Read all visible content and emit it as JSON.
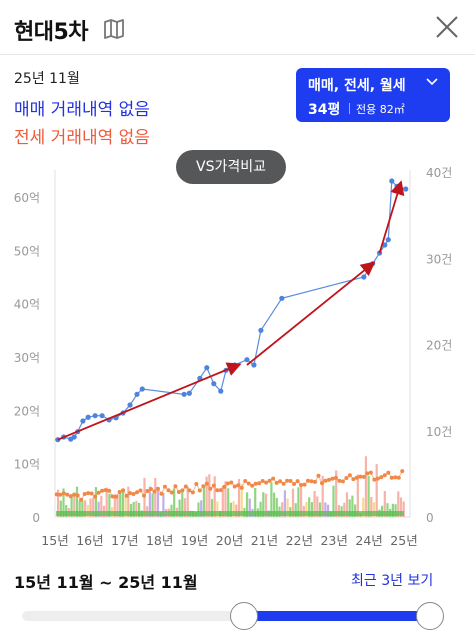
{
  "header": {
    "title": "현대5차"
  },
  "info": {
    "date": "25년 11월",
    "sale_status": "매매 거래내역 없음",
    "jeonse_status": "전세 거래내역 없음"
  },
  "type_selector": {
    "types": "매매, 전세, 월세",
    "size": "34평",
    "area": "전용 82㎡"
  },
  "vs_button": "VS가격비교",
  "colors": {
    "accent": "#1f3df0",
    "sale": "#2233dd",
    "jeonse": "#ee5a3a",
    "price_line": "#5b8de0",
    "trend_arrow": "#c0141c"
  },
  "chart_data": {
    "type": "line",
    "x_ticks": [
      "15년",
      "16년",
      "17년",
      "18년",
      "19년",
      "20년",
      "21년",
      "22년",
      "23년",
      "24년",
      "25년"
    ],
    "y_left_ticks": [
      "0",
      "10억",
      "20억",
      "30억",
      "40억",
      "50억",
      "60억"
    ],
    "y_right_ticks": [
      "0",
      "10건",
      "20건",
      "30건",
      "40건"
    ],
    "y_left_range": [
      0,
      65
    ],
    "y_right_range": [
      0,
      40
    ],
    "series": [
      {
        "axis": "left",
        "points": [
          [
            2015.08,
            14.5
          ],
          [
            2015.25,
            15
          ],
          [
            2015.45,
            14.6
          ],
          [
            2015.55,
            15
          ],
          [
            2015.65,
            16
          ],
          [
            2015.8,
            18
          ],
          [
            2015.95,
            18.7
          ],
          [
            2016.15,
            19
          ],
          [
            2016.35,
            19
          ],
          [
            2016.55,
            18.2
          ],
          [
            2016.75,
            18.6
          ],
          [
            2016.95,
            19.5
          ],
          [
            2017.15,
            21
          ],
          [
            2017.35,
            23
          ],
          [
            2017.5,
            24
          ],
          [
            2018.7,
            23
          ],
          [
            2018.85,
            23.2
          ],
          [
            2019.15,
            26
          ],
          [
            2019.35,
            28
          ],
          [
            2019.55,
            25
          ],
          [
            2019.75,
            23.6
          ],
          [
            2019.9,
            27.5
          ],
          [
            2020.15,
            28.5
          ],
          [
            2020.5,
            29.5
          ],
          [
            2020.7,
            28.5
          ],
          [
            2020.9,
            35
          ],
          [
            2021.5,
            41
          ],
          [
            2023.85,
            45
          ],
          [
            2024.1,
            47.5
          ],
          [
            2024.3,
            49.5
          ],
          [
            2024.45,
            51
          ],
          [
            2024.55,
            52
          ],
          [
            2024.65,
            63
          ],
          [
            2024.8,
            62
          ],
          [
            2025.05,
            61.5
          ]
        ]
      },
      {
        "axis": "left",
        "points": []
      }
    ],
    "trend_arrows": [
      [
        [
          2015.08,
          14.5
        ],
        [
          2020.25,
          28.5
        ]
      ],
      [
        [
          2020.5,
          28.5
        ],
        [
          2024.1,
          47.5
        ]
      ],
      [
        [
          2024.3,
          49.5
        ],
        [
          2024.9,
          62.5
        ]
      ]
    ],
    "volume_bars": "many small green/red/purple bars (transaction counts)"
  },
  "range": {
    "label": "15년 11월 ~ 25년 11월",
    "recent_label": "최근 3년 보기",
    "start_fraction": 0.54,
    "end_fraction": 1.0
  }
}
